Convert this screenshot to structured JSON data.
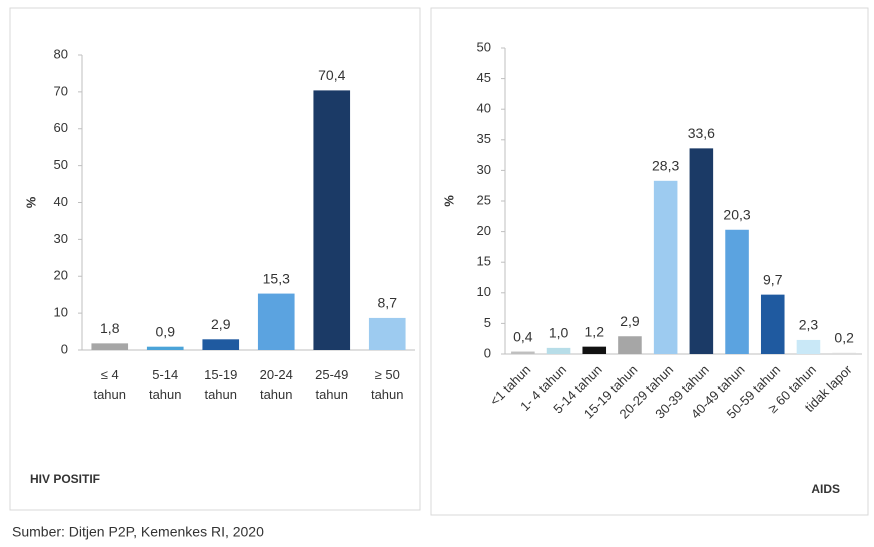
{
  "chart_data": [
    {
      "type": "bar",
      "title": "HIV POSITIF",
      "ylabel": "%",
      "categories": [
        "≤ 4 tahun",
        "5-14 tahun",
        "15-19 tahun",
        "20-24 tahun",
        "25-49 tahun",
        "≥ 50 tahun"
      ],
      "values": [
        1.8,
        0.9,
        2.9,
        15.3,
        70.4,
        8.7
      ],
      "value_labels": [
        "1,8",
        "0,9",
        "2,9",
        "15,3",
        "70,4",
        "8,7"
      ],
      "colors": [
        "#a6a6a6",
        "#4ba3d8",
        "#1f5aa0",
        "#5ba3e0",
        "#1b3a66",
        "#9dcbf0"
      ],
      "ylim": [
        0,
        80
      ],
      "yticks": [
        0,
        10,
        20,
        30,
        40,
        50,
        60,
        70,
        80
      ]
    },
    {
      "type": "bar",
      "title": "AIDS",
      "ylabel": "%",
      "categories": [
        "<1 tahun",
        "1- 4 tahun",
        "5-14 tahun",
        "15-19 tahun",
        "20-29 tahun",
        "30-39 tahun",
        "40-49 tahun",
        "50-59 tahun",
        "≥ 60 tahun",
        "tidak lapor"
      ],
      "values": [
        0.4,
        1.0,
        1.2,
        2.9,
        28.3,
        33.6,
        20.3,
        9.7,
        2.3,
        0.2
      ],
      "value_labels": [
        "0,4",
        "1,0",
        "1,2",
        "2,9",
        "28,3",
        "33,6",
        "20,3",
        "9,7",
        "2,3",
        "0,2"
      ],
      "colors": [
        "#bfbfbf",
        "#b7dde8",
        "#111111",
        "#a6a6a6",
        "#9dcbf0",
        "#1b3a66",
        "#5ba3e0",
        "#1f5aa0",
        "#c9e8f7",
        "#dddddd"
      ],
      "ylim": [
        0,
        50
      ],
      "yticks": [
        0,
        5,
        10,
        15,
        20,
        25,
        30,
        35,
        40,
        45,
        50
      ]
    }
  ],
  "source": "Sumber: Ditjen P2P, Kemenkes RI, 2020"
}
